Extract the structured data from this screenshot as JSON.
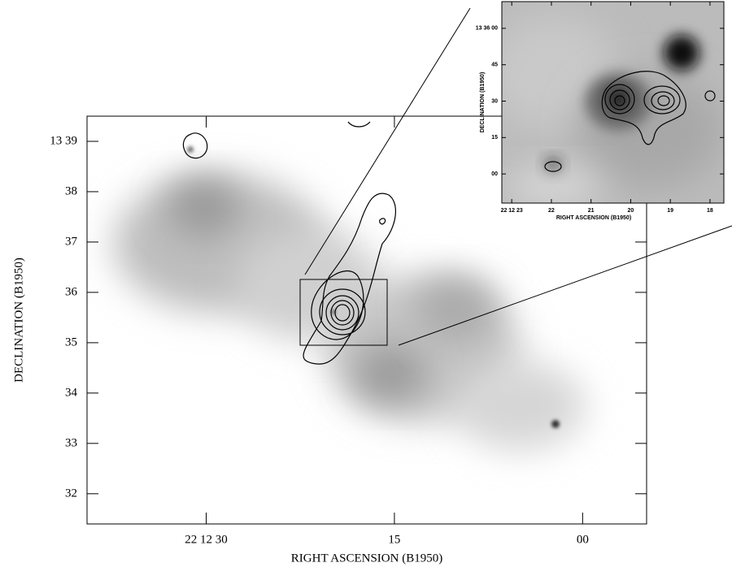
{
  "chart_data": [
    {
      "type": "image",
      "x_label": "RIGHT ASCENSION (B1950)",
      "y_label": "DECLINATION (B1950)",
      "xlim": [
        39.5,
        -5.1
      ],
      "xticks": [
        {
          "value": 30,
          "label": "22 12 30"
        },
        {
          "value": 15,
          "label": "15"
        },
        {
          "value": 0,
          "label": "00"
        }
      ],
      "ylim": [
        31.4,
        39.5
      ],
      "yticks": [
        32,
        33,
        34,
        35,
        36,
        37,
        38,
        {
          "value": 39,
          "label": "13 39"
        }
      ]
    },
    {
      "type": "image",
      "x_label": "RIGHT ASCENSION (B1950)",
      "y_label": "DECLINATION (B1950)",
      "xlim": [
        23.25,
        17.65
      ],
      "xticks": [
        {
          "value": 23,
          "label": "22 12 23"
        },
        22,
        21,
        20,
        19,
        18
      ],
      "ylim": [
        -12,
        71
      ],
      "yticks": [
        {
          "value": 0,
          "label": "00"
        },
        15,
        30,
        45,
        {
          "value": 60,
          "label": "13 36 00"
        }
      ]
    }
  ]
}
